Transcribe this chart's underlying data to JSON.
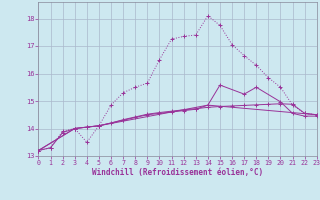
{
  "xlabel": "Windchill (Refroidissement éolien,°C)",
  "bg_color": "#cde8f0",
  "line_color": "#993399",
  "grid_color": "#aab8cc",
  "xlim": [
    0,
    23
  ],
  "ylim": [
    13.0,
    18.6
  ],
  "yticks": [
    13,
    14,
    15,
    16,
    17,
    18
  ],
  "xticks": [
    0,
    1,
    2,
    3,
    4,
    5,
    6,
    7,
    8,
    9,
    10,
    11,
    12,
    13,
    14,
    15,
    16,
    17,
    18,
    19,
    20,
    21,
    22,
    23
  ],
  "curve1_x": [
    0,
    1,
    2,
    3,
    4,
    5,
    6,
    7,
    8,
    9,
    10,
    11,
    12,
    13,
    14,
    15,
    16,
    17,
    18,
    19,
    20,
    21,
    22,
    23
  ],
  "curve1_y": [
    13.2,
    13.3,
    13.9,
    14.0,
    13.5,
    14.1,
    14.85,
    15.3,
    15.5,
    15.65,
    16.5,
    17.25,
    17.35,
    17.4,
    18.1,
    17.75,
    17.05,
    16.65,
    16.3,
    15.85,
    15.5,
    14.85,
    14.55,
    14.5
  ],
  "curve2_x": [
    0,
    1,
    2,
    3,
    4,
    5,
    6,
    7,
    8,
    9,
    10,
    11,
    12,
    13,
    14,
    15,
    16,
    17,
    18,
    19,
    20,
    21,
    22,
    23
  ],
  "curve2_y": [
    13.2,
    13.3,
    13.85,
    14.0,
    14.05,
    14.1,
    14.2,
    14.32,
    14.42,
    14.52,
    14.58,
    14.63,
    14.68,
    14.72,
    14.77,
    14.8,
    14.82,
    14.84,
    14.86,
    14.88,
    14.9,
    14.88,
    14.55,
    14.5
  ],
  "curve3_x": [
    0,
    3,
    4,
    5,
    7,
    9,
    10,
    11,
    12,
    13,
    14,
    15,
    17,
    18,
    20,
    21,
    22,
    23
  ],
  "curve3_y": [
    13.2,
    14.0,
    14.05,
    14.1,
    14.3,
    14.5,
    14.55,
    14.6,
    14.65,
    14.7,
    14.85,
    15.58,
    15.25,
    15.5,
    14.97,
    14.55,
    14.45,
    14.45
  ],
  "curve4_x": [
    0,
    3,
    4,
    5,
    14,
    23
  ],
  "curve4_y": [
    13.2,
    14.0,
    14.05,
    14.1,
    14.85,
    14.5
  ]
}
